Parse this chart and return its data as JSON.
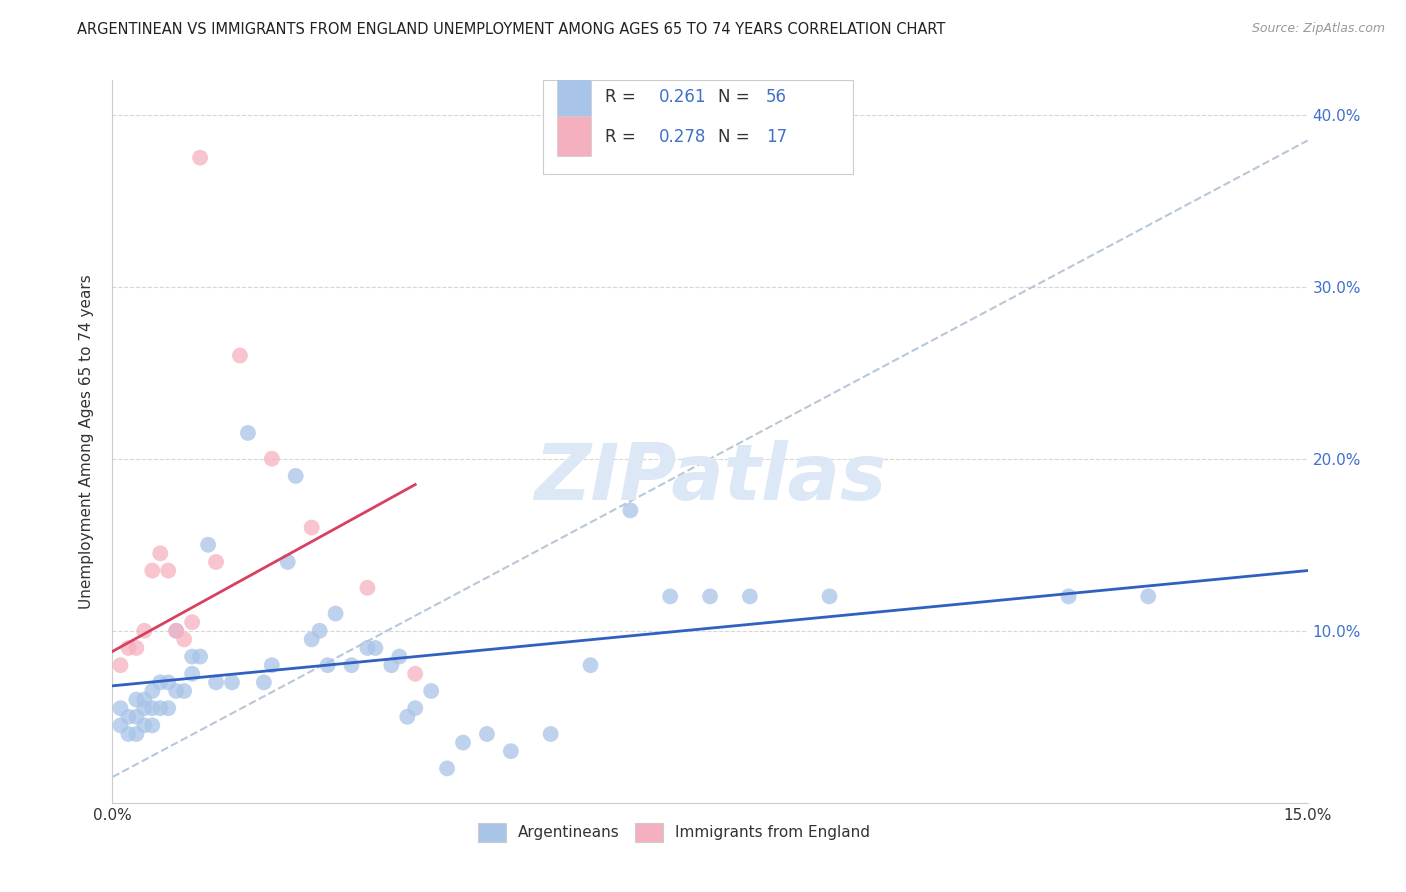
{
  "title": "ARGENTINEAN VS IMMIGRANTS FROM ENGLAND UNEMPLOYMENT AMONG AGES 65 TO 74 YEARS CORRELATION CHART",
  "source": "Source: ZipAtlas.com",
  "ylabel": "Unemployment Among Ages 65 to 74 years",
  "xlim": [
    0,
    0.15
  ],
  "ylim": [
    0,
    0.42
  ],
  "legend1_R": "0.261",
  "legend1_N": "56",
  "legend2_R": "0.278",
  "legend2_N": "17",
  "blue_color": "#a8c4e8",
  "pink_color": "#f5b0c0",
  "blue_line_color": "#3060c0",
  "pink_line_color": "#d84060",
  "dashed_line_color": "#b8c8d8",
  "label_color": "#4070c8",
  "watermark_color": "#dce8f5",
  "watermark": "ZIPatlas",
  "blue_x": [
    0.001,
    0.001,
    0.002,
    0.002,
    0.003,
    0.003,
    0.003,
    0.004,
    0.004,
    0.004,
    0.005,
    0.005,
    0.005,
    0.006,
    0.006,
    0.007,
    0.007,
    0.008,
    0.008,
    0.009,
    0.01,
    0.01,
    0.011,
    0.012,
    0.013,
    0.015,
    0.017,
    0.019,
    0.02,
    0.022,
    0.023,
    0.025,
    0.026,
    0.027,
    0.028,
    0.03,
    0.032,
    0.033,
    0.035,
    0.036,
    0.037,
    0.038,
    0.04,
    0.042,
    0.044,
    0.047,
    0.05,
    0.055,
    0.06,
    0.065,
    0.07,
    0.075,
    0.08,
    0.09,
    0.12,
    0.13
  ],
  "blue_y": [
    0.055,
    0.045,
    0.05,
    0.04,
    0.06,
    0.05,
    0.04,
    0.055,
    0.06,
    0.045,
    0.065,
    0.055,
    0.045,
    0.07,
    0.055,
    0.07,
    0.055,
    0.1,
    0.065,
    0.065,
    0.085,
    0.075,
    0.085,
    0.15,
    0.07,
    0.07,
    0.215,
    0.07,
    0.08,
    0.14,
    0.19,
    0.095,
    0.1,
    0.08,
    0.11,
    0.08,
    0.09,
    0.09,
    0.08,
    0.085,
    0.05,
    0.055,
    0.065,
    0.02,
    0.035,
    0.04,
    0.03,
    0.04,
    0.08,
    0.17,
    0.12,
    0.12,
    0.12,
    0.12,
    0.12,
    0.12
  ],
  "pink_x": [
    0.001,
    0.002,
    0.003,
    0.004,
    0.005,
    0.006,
    0.007,
    0.008,
    0.009,
    0.01,
    0.011,
    0.013,
    0.016,
    0.02,
    0.025,
    0.032,
    0.038
  ],
  "pink_y": [
    0.08,
    0.09,
    0.09,
    0.1,
    0.135,
    0.145,
    0.135,
    0.1,
    0.095,
    0.105,
    0.375,
    0.14,
    0.26,
    0.2,
    0.16,
    0.125,
    0.075
  ],
  "blue_trend_x0": 0.0,
  "blue_trend_y0": 0.068,
  "blue_trend_x1": 0.15,
  "blue_trend_y1": 0.135,
  "pink_trend_x0": 0.0,
  "pink_trend_y0": 0.088,
  "pink_trend_x1": 0.038,
  "pink_trend_y1": 0.185,
  "dashed_trend_x0": 0.0,
  "dashed_trend_y0": 0.015,
  "dashed_trend_x1": 0.15,
  "dashed_trend_y1": 0.385
}
